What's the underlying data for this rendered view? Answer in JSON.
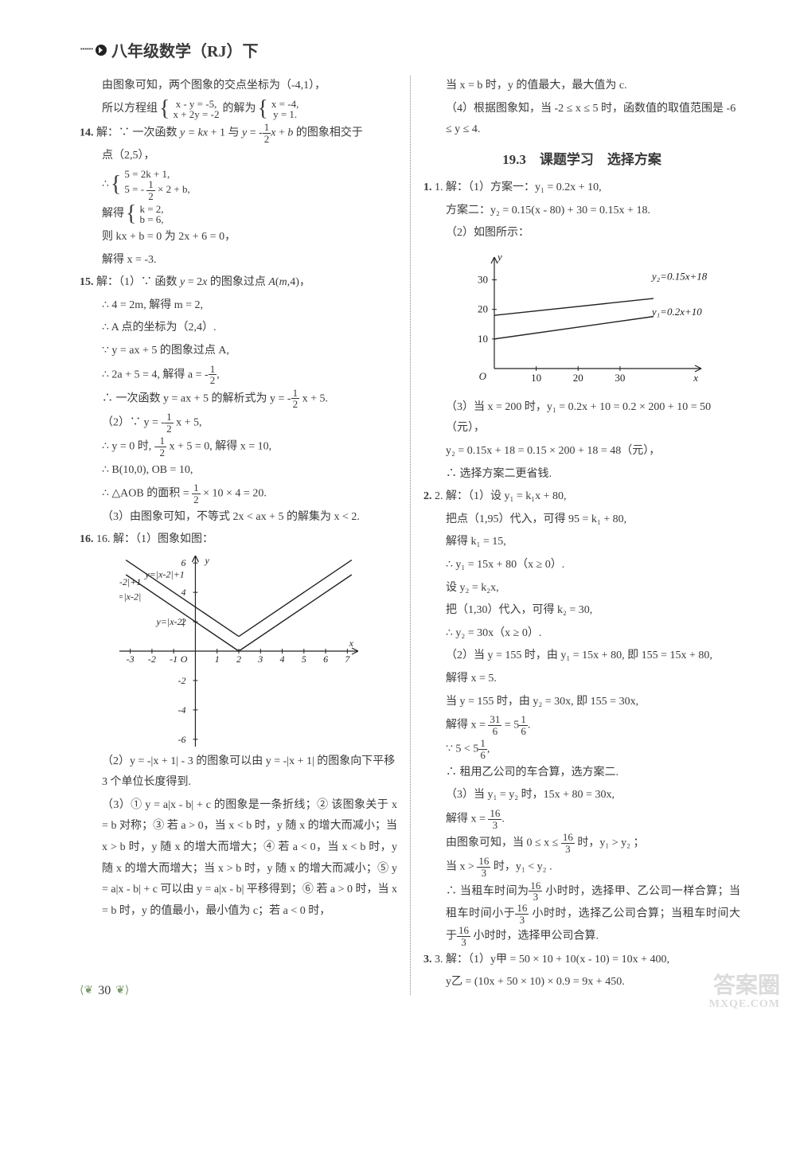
{
  "header": {
    "title": "八年级数学（RJ）下"
  },
  "left": {
    "pre14": [
      "由图象可知，两个图象的交点坐标为（-4,1），",
      "所以方程组 { x - y = -5, x + 2y = -2 } 的解为 { x = -4, y = 1. }"
    ],
    "p14": {
      "lead": "14. 解：∵ 一次函数 y = kx + 1 与 y = -",
      "lead_tail": " x + b 的图象相交于",
      "l1": "点（2,5），",
      "sys_a": "5 = 2k + 1,",
      "sys_b": "5 = - (1/2) × 2 + b,",
      "solve_a": "k = 2,",
      "solve_b": "b = 6,",
      "l4": "则 kx + b = 0 为 2x + 6 = 0，",
      "l5": "解得 x = -3."
    },
    "p15": {
      "lead": "15. 解：（1）∵ 函数 y = 2x 的图象过点 A(m,4)，",
      "l1": "∴ 4 = 2m, 解得 m = 2,",
      "l2": "∴ A 点的坐标为（2,4）.",
      "l3": "∵ y = ax + 5 的图象过点 A,",
      "l4a": "∴ 2a + 5 = 4, 解得 a = -",
      "l4b": ",",
      "l5a": "∴ 一次函数 y = ax + 5 的解析式为 y = -",
      "l5b": " x + 5.",
      "l6a": "（2）∵ y = -",
      "l6b": " x + 5,",
      "l7a": "∴ y = 0 时, -",
      "l7b": " x + 5 = 0, 解得 x = 10,",
      "l8": "∴ B(10,0), OB = 10,",
      "l9a": "∴ △AOB 的面积 = ",
      "l9b": " × 10 × 4 = 20.",
      "l10": "（3）由图象可知，不等式 2x < ax + 5 的解集为 x < 2."
    },
    "p16": {
      "lead": "16. 解：（1）图象如图：",
      "l1": "（2）y = -|x + 1| - 3 的图象可以由 y = -|x + 1| 的图象向下平移 3 个单位长度得到.",
      "l2": "（3）① y = a|x - b| + c 的图象是一条折线；② 该图象关于 x = b 对称；③ 若 a > 0，当 x < b 时，y 随 x 的增大而减小；当 x > b 时，y 随 x 的增大而增大；④ 若 a < 0，当 x < b 时，y 随 x 的增大而增大；当 x > b 时，y 随 x 的增大而减小；⑤ y = a|x - b| + c 可以由 y = a|x - b| 平移得到；⑥ 若 a > 0 时，当 x = b 时，y 的值最小，最小值为 c；若 a < 0 时，"
    }
  },
  "right": {
    "cont16": [
      "当 x = b 时，y 的值最大，最大值为 c.",
      "（4）根据图象知，当 -2 ≤ x ≤ 5 时，函数值的取值范围是 -6 ≤ y ≤ 4."
    ],
    "section": "19.3　课题学习　选择方案",
    "q1": {
      "lead": "1. 解：（1）方案一：y₁ = 0.2x + 10,",
      "l1": "方案二：y₂ = 0.15(x - 80) + 30 = 0.15x + 18.",
      "l2": "（2）如图所示：",
      "l3": "（3）当 x = 200 时，y₁ = 0.2x + 10 = 0.2 × 200 + 10 = 50（元），",
      "l4": "y₂ = 0.15x + 18 = 0.15 × 200 + 18 = 48（元），",
      "l5": "∴ 选择方案二更省钱."
    },
    "q2": {
      "lead": "2. 解：（1）设 y₁ = k₁x + 80,",
      "l1": "把点（1,95）代入，可得 95 = k₁ + 80,",
      "l2": "解得 k₁ = 15,",
      "l3": "∴ y₁ = 15x + 80（x ≥ 0）.",
      "l4": "设 y₂ = k₂x,",
      "l5": "把（1,30）代入，可得 k₂ = 30,",
      "l6": "∴ y₂ = 30x（x ≥ 0）.",
      "l7": "（2）当 y = 155 时，由 y₁ = 15x + 80, 即 155 = 15x + 80,",
      "l8": "解得 x = 5.",
      "l9": "当 y = 155 时，由 y₂ = 30x, 即 155 = 30x,",
      "l10a": "解得 x = ",
      "l10b": " = 5",
      "l10c": ".",
      "l11a": "∵ 5 < 5",
      "l11b": ",",
      "l12": "∴ 租用乙公司的车合算，选方案二.",
      "l13": "（3）当 y₁ = y₂ 时，15x + 80 = 30x,",
      "l14a": "解得 x = ",
      "l14b": ".",
      "l15a": "由图象可知，当 0 ≤ x ≤ ",
      "l15b": " 时，y₁ > y₂ ；",
      "l16a": "当 x > ",
      "l16b": " 时，y₁ < y₂ .",
      "l17a": "∴ 当租车时间为",
      "l17b": "小时时，选择甲、乙公司一样合算；当租车时间小于",
      "l17c": "小时时，选择乙公司合算；当租车时间大于",
      "l17d": "小时时，选择甲公司合算."
    },
    "q3": {
      "lead": "3. 解：（1）y甲 = 50 × 10 + 10(x - 10) = 10x + 400,",
      "l1": "y乙 = (10x + 50 × 10) × 0.9 = 9x + 450."
    }
  },
  "graph16": {
    "xmin": -3.5,
    "xmax": 7.5,
    "ymin": -6.5,
    "ymax": 6.5,
    "xticks": [
      -3,
      -2,
      -1,
      1,
      2,
      3,
      4,
      5,
      6,
      7
    ],
    "yticks": [
      -6,
      -4,
      -2,
      2,
      4,
      6
    ],
    "label_x": "x",
    "label_y": "y",
    "curves": [
      {
        "label": "y=|x-2|+1",
        "vertex": [
          2,
          1
        ],
        "slope": 1
      },
      {
        "label": "y=|x-2|",
        "vertex": [
          2,
          0
        ],
        "slope": 1
      }
    ],
    "axis_color": "#222",
    "line_color": "#222",
    "bg": "#ffffff"
  },
  "graph193": {
    "xmin": 0,
    "xmax": 38,
    "ymin": 0,
    "ymax": 35,
    "xticks": [
      10,
      20,
      30
    ],
    "yticks": [
      10,
      20,
      30
    ],
    "label_x": "x",
    "label_y": "y",
    "lines": [
      {
        "label": "y₂=0.15x+18",
        "b": 18,
        "m": 0.15,
        "label_x": 30,
        "label_y": 30
      },
      {
        "label": "y₁=0.2x+10",
        "b": 10,
        "m": 0.2,
        "label_x": 30,
        "label_y": 18
      }
    ],
    "axis_color": "#222",
    "line_color": "#222",
    "bg": "#ffffff"
  },
  "pageNumber": "30",
  "watermark": {
    "big": "答案圈",
    "small": "MXQE.COM"
  }
}
